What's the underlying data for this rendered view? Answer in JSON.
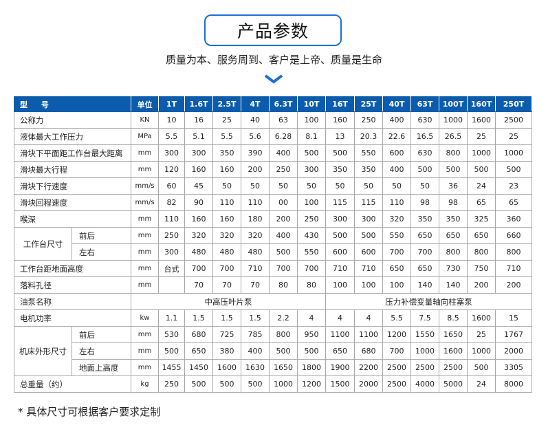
{
  "header": {
    "title": "产品参数",
    "subtitle": "质量为本、服务周到、客户是上帝、质量是生命",
    "accent": "#1a6fd6",
    "chevron_icon": "chevron-down-icon"
  },
  "table": {
    "header_color": "#0b5cad",
    "columns": [
      "型 号",
      "单位",
      "1T",
      "1.6T",
      "2.5T",
      "4T",
      "6.3T",
      "10T",
      "16T",
      "25T",
      "40T",
      "63T",
      "100T",
      "160T",
      "250T"
    ],
    "rows": [
      {
        "label": "公称力",
        "unit": "KN",
        "values": [
          "10",
          "16",
          "25",
          "40",
          "63",
          "100",
          "160",
          "250",
          "400",
          "630",
          "1000",
          "1600",
          "2500"
        ]
      },
      {
        "label": "液体最大工作压力",
        "unit": "MPa",
        "values": [
          "5.5",
          "5.1",
          "5.5",
          "5.6",
          "6.28",
          "8.1",
          "13",
          "20.3",
          "22.6",
          "16.5",
          "26.5",
          "25",
          "25"
        ]
      },
      {
        "label": "滑块下平面距工作台最大距离",
        "unit": "mm",
        "values": [
          "300",
          "300",
          "350",
          "390",
          "400",
          "500",
          "500",
          "550",
          "600",
          "630",
          "800",
          "1000",
          "1000"
        ]
      },
      {
        "label": "滑块最大行程",
        "unit": "mm",
        "values": [
          "120",
          "160",
          "160",
          "200",
          "250",
          "300",
          "350",
          "350",
          "400",
          "500",
          "500",
          "500",
          "500"
        ]
      },
      {
        "label": "滑块下行速度",
        "unit": "mm/s",
        "values": [
          "60",
          "45",
          "50",
          "50",
          "50",
          "50",
          "50",
          "50",
          "50",
          "50",
          "36",
          "24",
          "23"
        ]
      },
      {
        "label": "滑块回程速度",
        "unit": "mm/s",
        "values": [
          "82",
          "90",
          "110",
          "110",
          "00",
          "100",
          "115",
          "115",
          "110",
          "98",
          "98",
          "65",
          "65"
        ]
      },
      {
        "label": "喉深",
        "unit": "mm",
        "values": [
          "110",
          "160",
          "160",
          "180",
          "200",
          "250",
          "300",
          "300",
          "320",
          "350",
          "350",
          "325",
          "360"
        ]
      },
      {
        "group": "工作台尺寸",
        "label": "前后",
        "unit": "mm",
        "values": [
          "250",
          "320",
          "320",
          "320",
          "400",
          "430",
          "500",
          "500",
          "550",
          "650",
          "650",
          "650",
          "660"
        ]
      },
      {
        "group": "工作台尺寸",
        "label": "左右",
        "unit": "mm",
        "values": [
          "300",
          "480",
          "480",
          "480",
          "500",
          "550",
          "600",
          "600",
          "700",
          "700",
          "800",
          "800",
          "800"
        ]
      },
      {
        "label": "工作台距地面高度",
        "unit": "mm",
        "values": [
          "台式",
          "700",
          "700",
          "710",
          "700",
          "700",
          "710",
          "710",
          "650",
          "650",
          "730",
          "750",
          "710"
        ]
      },
      {
        "label": "落料孔径",
        "unit": "mm",
        "values": [
          "",
          "70",
          "70",
          "70",
          "80",
          "80",
          "100",
          "100",
          "100",
          "140",
          "140",
          "200",
          "200"
        ]
      },
      {
        "label": "油泵名称",
        "spans": [
          "中高压叶片泵",
          "压力补偿变量轴向柱塞泵"
        ]
      },
      {
        "label": "电机功率",
        "unit": "kw",
        "values": [
          "1.1",
          "1.5",
          "1.5",
          "1.5",
          "2.2",
          "4",
          "4",
          "4",
          "5.5",
          "7.5",
          "8.5",
          "1600",
          "15"
        ]
      },
      {
        "group": "机床外形尺寸",
        "label": "前后",
        "unit": "mm",
        "values": [
          "530",
          "680",
          "725",
          "785",
          "800",
          "950",
          "1100",
          "1100",
          "1200",
          "1550",
          "1650",
          "25",
          "1767"
        ]
      },
      {
        "group": "机床外形尺寸",
        "label": "左右",
        "unit": "mm",
        "values": [
          "500",
          "650",
          "380",
          "400",
          "500",
          "500",
          "650",
          "680",
          "700",
          "1000",
          "1600",
          "1000",
          "2000"
        ]
      },
      {
        "group": "机床外形尺寸",
        "label": "地面上高度",
        "unit": "mm",
        "values": [
          "1455",
          "1450",
          "1600",
          "1630",
          "1650",
          "1800",
          "1900",
          "2200",
          "2500",
          "2500",
          "2500",
          "500",
          "3305"
        ]
      },
      {
        "label": "总重量（约）",
        "unit": "kg",
        "values": [
          "250",
          "500",
          "500",
          "500",
          "1000",
          "1200",
          "1500",
          "2000",
          "2500",
          "4000",
          "5000",
          "24",
          "8000"
        ]
      }
    ]
  },
  "footnote": "* 具体尺寸可根据客户要求定制"
}
